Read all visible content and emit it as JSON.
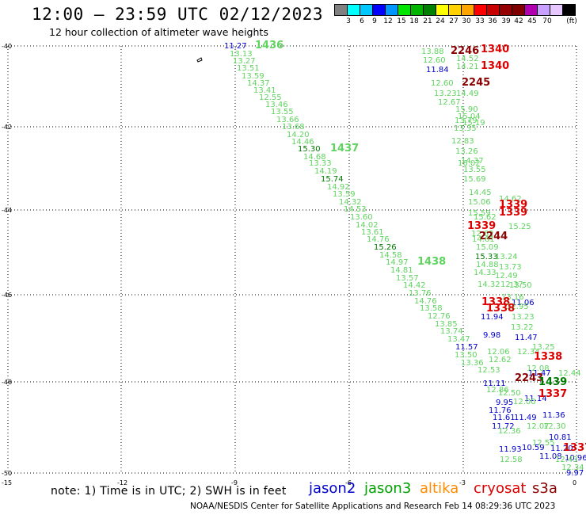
{
  "header": {
    "title": "12:00 – 23:59 UTC 02/12/2023",
    "subtitle": "12 hour collection of altimeter wave heights"
  },
  "colorbar": {
    "unit": "(ft)",
    "colors": [
      "#808080",
      "#00ffff",
      "#00c8ff",
      "#0000ff",
      "#0096ff",
      "#00e600",
      "#00b400",
      "#008000",
      "#ffff00",
      "#ffd200",
      "#ffa500",
      "#ff0000",
      "#c80000",
      "#960000",
      "#800000",
      "#b000b0",
      "#c8a0ff",
      "#e6c8ff",
      "#000000"
    ],
    "labels": [
      "3",
      "6",
      "9",
      "12",
      "15",
      "18",
      "21",
      "24",
      "27",
      "30",
      "33",
      "36",
      "39",
      "42",
      "45",
      "70"
    ]
  },
  "axes": {
    "y_ticks": [
      "-40",
      "-42",
      "-44",
      "-46",
      "-48",
      "-50"
    ],
    "x_ticks": [
      "-15",
      "-12",
      "-9",
      "-6",
      "-3",
      "0"
    ]
  },
  "observations": [
    {
      "text": "11.27",
      "sat": "jason2"
    },
    {
      "text": "1436",
      "sat": "jason3",
      "bold": true
    },
    {
      "text": "13.13",
      "sat": "jason3"
    },
    {
      "text": "13.27",
      "sat": "jason3"
    },
    {
      "text": "13.51",
      "sat": "jason3"
    },
    {
      "text": "13.59",
      "sat": "jason3"
    },
    {
      "text": "14.37",
      "sat": "jason3"
    },
    {
      "text": "13.41",
      "sat": "jason3"
    },
    {
      "text": "12.55",
      "sat": "jason3"
    },
    {
      "text": "13.46",
      "sat": "jason3"
    },
    {
      "text": "13.55",
      "sat": "jason3"
    },
    {
      "text": "13.66",
      "sat": "jason3"
    },
    {
      "text": "13.68",
      "sat": "jason3"
    },
    {
      "text": "14.20",
      "sat": "jason3"
    },
    {
      "text": "14.46",
      "sat": "jason3"
    },
    {
      "text": "15.30",
      "sat": "jason3dark"
    },
    {
      "text": "1437",
      "sat": "jason3",
      "bold": true
    },
    {
      "text": "14.68",
      "sat": "jason3"
    },
    {
      "text": "13.33",
      "sat": "jason3"
    },
    {
      "text": "14.19",
      "sat": "jason3"
    },
    {
      "text": "15.74",
      "sat": "jason3dark"
    },
    {
      "text": "14.92",
      "sat": "jason3"
    },
    {
      "text": "13.59",
      "sat": "jason3"
    },
    {
      "text": "14.32",
      "sat": "jason3"
    },
    {
      "text": "14.53",
      "sat": "jason3"
    },
    {
      "text": "13.60",
      "sat": "jason3"
    },
    {
      "text": "14.02",
      "sat": "jason3"
    },
    {
      "text": "13.61",
      "sat": "jason3"
    },
    {
      "text": "14.76",
      "sat": "jason3"
    },
    {
      "text": "15.26",
      "sat": "jason3dark"
    },
    {
      "text": "14.58",
      "sat": "jason3"
    },
    {
      "text": "14.97",
      "sat": "jason3"
    },
    {
      "text": "1438",
      "sat": "jason3",
      "bold": true
    },
    {
      "text": "14.81",
      "sat": "jason3"
    },
    {
      "text": "13.57",
      "sat": "jason3"
    },
    {
      "text": "14.42",
      "sat": "jason3"
    },
    {
      "text": "13.76",
      "sat": "jason3"
    },
    {
      "text": "14.76",
      "sat": "jason3"
    },
    {
      "text": "13.58",
      "sat": "jason3"
    },
    {
      "text": "12.76",
      "sat": "jason3"
    },
    {
      "text": "13.85",
      "sat": "jason3"
    },
    {
      "text": "13.74",
      "sat": "jason3"
    },
    {
      "text": "13.47",
      "sat": "jason3"
    },
    {
      "text": "11.57",
      "sat": "jason2"
    },
    {
      "text": "13.50",
      "sat": "jason3"
    },
    {
      "text": "13.36",
      "sat": "jason3"
    },
    {
      "text": "13.88",
      "sat": "jason3"
    },
    {
      "text": "2246",
      "sat": "s3a",
      "bold": true
    },
    {
      "text": "1340",
      "sat": "cryosat",
      "bold": true
    },
    {
      "text": "14.52",
      "sat": "jason3"
    },
    {
      "text": "12.60",
      "sat": "jason3"
    },
    {
      "text": "14.21",
      "sat": "jason3"
    },
    {
      "text": "1340",
      "sat": "cryosat",
      "bold": true
    },
    {
      "text": "11.84",
      "sat": "jason2"
    },
    {
      "text": "12.60",
      "sat": "jason3"
    },
    {
      "text": "2245",
      "sat": "s3a",
      "bold": true
    },
    {
      "text": "13.23",
      "sat": "jason3"
    },
    {
      "text": "14.49",
      "sat": "jason3"
    },
    {
      "text": "12.67",
      "sat": "jason3"
    },
    {
      "text": "15.90",
      "sat": "jason3"
    },
    {
      "text": "15.04",
      "sat": "jason3"
    },
    {
      "text": "13.79",
      "sat": "jason3"
    },
    {
      "text": "15.19",
      "sat": "jason3"
    },
    {
      "text": "13.35",
      "sat": "jason3"
    },
    {
      "text": "12.83",
      "sat": "jason3"
    },
    {
      "text": "13.26",
      "sat": "jason3"
    },
    {
      "text": "14.37",
      "sat": "jason3"
    },
    {
      "text": "16.02",
      "sat": "jason3"
    },
    {
      "text": "13.55",
      "sat": "jason3"
    },
    {
      "text": "15.69",
      "sat": "jason3"
    },
    {
      "text": "14.45",
      "sat": "jason3"
    },
    {
      "text": "14.62",
      "sat": "jason3"
    },
    {
      "text": "15.06",
      "sat": "jason3"
    },
    {
      "text": "1339",
      "sat": "cryosat",
      "bold": true
    },
    {
      "text": "15.59",
      "sat": "jason3"
    },
    {
      "text": "1339",
      "sat": "cryosat",
      "bold": true
    },
    {
      "text": "15.62",
      "sat": "jason3"
    },
    {
      "text": "1339",
      "sat": "cryosat",
      "bold": true
    },
    {
      "text": "15.25",
      "sat": "jason3"
    },
    {
      "text": "12.62",
      "sat": "jason3"
    },
    {
      "text": "2244",
      "sat": "s3a",
      "bold": true
    },
    {
      "text": "14.61",
      "sat": "jason3"
    },
    {
      "text": "15.09",
      "sat": "jason3"
    },
    {
      "text": "15.33",
      "sat": "jason3dark"
    },
    {
      "text": "13.24",
      "sat": "jason3"
    },
    {
      "text": "14.88",
      "sat": "jason3"
    },
    {
      "text": "13.73",
      "sat": "jason3"
    },
    {
      "text": "14.33",
      "sat": "jason3"
    },
    {
      "text": "12.49",
      "sat": "jason3"
    },
    {
      "text": "14.32",
      "sat": "jason3"
    },
    {
      "text": "12.37",
      "sat": "jason3"
    },
    {
      "text": "13.50",
      "sat": "jason3"
    },
    {
      "text": "13.16",
      "sat": "jason3"
    },
    {
      "text": "1338",
      "sat": "cryosat",
      "bold": true
    },
    {
      "text": "11.06",
      "sat": "jason2"
    },
    {
      "text": "12.95",
      "sat": "jason3"
    },
    {
      "text": "1338",
      "sat": "cryosat",
      "bold": true
    },
    {
      "text": "11.94",
      "sat": "jason2"
    },
    {
      "text": "13.23",
      "sat": "jason3"
    },
    {
      "text": "13.22",
      "sat": "jason3"
    },
    {
      "text": "9.98",
      "sat": "jason2"
    },
    {
      "text": "11.47",
      "sat": "jason2"
    },
    {
      "text": "13.25",
      "sat": "jason3"
    },
    {
      "text": "12.06",
      "sat": "jason3"
    },
    {
      "text": "12.34",
      "sat": "jason3"
    },
    {
      "text": "12.62",
      "sat": "jason3"
    },
    {
      "text": "1338",
      "sat": "cryosat",
      "bold": true
    },
    {
      "text": "12.53",
      "sat": "jason3"
    },
    {
      "text": "12.08",
      "sat": "jason3"
    },
    {
      "text": "12.44",
      "sat": "jason3"
    },
    {
      "text": "11.47",
      "sat": "jason2"
    },
    {
      "text": "2243",
      "sat": "s3a",
      "bold": true
    },
    {
      "text": "11.11",
      "sat": "jason2"
    },
    {
      "text": "1439",
      "sat": "jason3dark",
      "bold": true
    },
    {
      "text": "12.86",
      "sat": "jason3"
    },
    {
      "text": "11.14",
      "sat": "jason2"
    },
    {
      "text": "12.50",
      "sat": "jason3"
    },
    {
      "text": "1337",
      "sat": "cryosat",
      "bold": true
    },
    {
      "text": "9.95",
      "sat": "jason2"
    },
    {
      "text": "12.00",
      "sat": "jason3"
    },
    {
      "text": "11.76",
      "sat": "jason2"
    },
    {
      "text": "11.61",
      "sat": "jason2"
    },
    {
      "text": "11.49",
      "sat": "jason2"
    },
    {
      "text": "11.36",
      "sat": "jason2"
    },
    {
      "text": "11.72",
      "sat": "jason2"
    },
    {
      "text": "12.07",
      "sat": "jason3"
    },
    {
      "text": "12.30",
      "sat": "jason3"
    },
    {
      "text": "12.36",
      "sat": "jason3"
    },
    {
      "text": "10.81",
      "sat": "jason2"
    },
    {
      "text": "12.55",
      "sat": "jason3"
    },
    {
      "text": "10.59",
      "sat": "jason2"
    },
    {
      "text": "11.93",
      "sat": "jason2"
    },
    {
      "text": "12.58",
      "sat": "jason3"
    },
    {
      "text": "11.20",
      "sat": "jason2"
    },
    {
      "text": "1337",
      "sat": "cryosat",
      "bold": true
    },
    {
      "text": "11.08",
      "sat": "jason2"
    },
    {
      "text": "10.96",
      "sat": "jason2"
    },
    {
      "text": "12.43",
      "sat": "jason3"
    },
    {
      "text": "12.34",
      "sat": "jason3"
    },
    {
      "text": "9.97",
      "sat": "jason2"
    },
    {
      "text": "11.64",
      "sat": "jason2"
    },
    {
      "text": "10.78",
      "sat": "jason2"
    },
    {
      "text": "11.19",
      "sat": "jason2"
    }
  ],
  "note": "note: 1) Time is in UTC; 2) SWH is in feet",
  "legend": [
    {
      "label": "jason2",
      "color": "#0000cc"
    },
    {
      "label": "jason3",
      "color": "#00a000"
    },
    {
      "label": "altika",
      "color": "#ff8c00"
    },
    {
      "label": "cryosat",
      "color": "#dd0000"
    },
    {
      "label": "s3a",
      "color": "#8b0000"
    }
  ],
  "footer": "NOAA/NESDIS Center for Satellite Applications and Research    Feb 14 08:29:36 UTC 2023",
  "colors": {
    "jason2": "#0000cc",
    "jason3": "#5fd35f",
    "jason3dark": "#007a00",
    "cryosat": "#dd0000",
    "s3a": "#8b0000"
  }
}
